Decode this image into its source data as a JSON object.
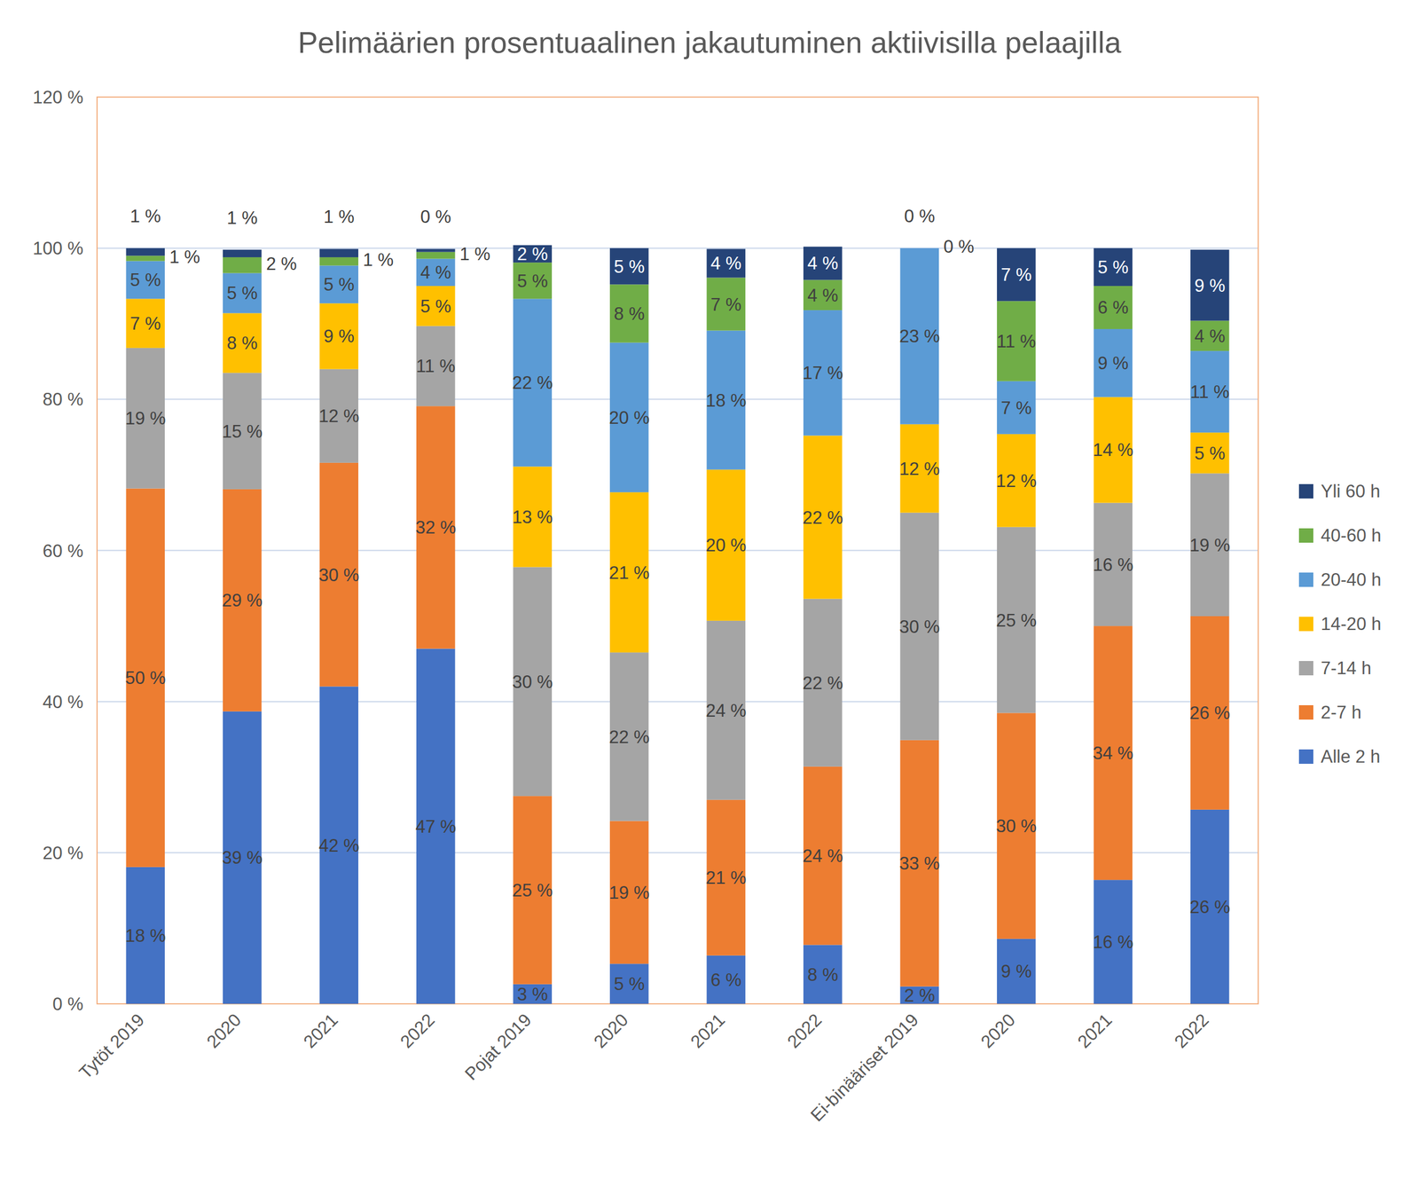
{
  "chart_data": {
    "type": "bar",
    "stacked": true,
    "data_labels": true,
    "grid": true,
    "legend": "right",
    "title": "Pelimäärien prosentuaalinen jakautuminen aktiivisilla pelaajilla",
    "categories": [
      "Tytöt 2019",
      "2020",
      "2021",
      "2022",
      "Pojat 2019",
      "2020",
      "2021",
      "2022",
      "Ei-binääriset 2019",
      "2020",
      "2021",
      "2022"
    ],
    "ylim": [
      0,
      120
    ],
    "yticks": [
      {
        "value": 0,
        "label": "0 %"
      },
      {
        "value": 20,
        "label": "20 %"
      },
      {
        "value": 40,
        "label": "40 %"
      },
      {
        "value": 60,
        "label": "60 %"
      },
      {
        "value": 80,
        "label": "80 %"
      },
      {
        "value": 100,
        "label": "100 %"
      },
      {
        "value": 120,
        "label": "120 %"
      }
    ],
    "series": [
      {
        "name": "Alle 2 h",
        "color": "#4472c4",
        "values": [
          18.1,
          38.7,
          42.0,
          47.0,
          2.6,
          5.3,
          6.4,
          7.8,
          2.3,
          8.6,
          16.4,
          25.7
        ],
        "value_labels": [
          "18 %",
          "39 %",
          "42 %",
          "47 %",
          "3 %",
          "5 %",
          "6 %",
          "8 %",
          "2 %",
          "9 %",
          "16 %",
          "26 %"
        ]
      },
      {
        "name": "2-7 h",
        "color": "#ed7d31",
        "values": [
          50.1,
          29.4,
          29.6,
          32.1,
          24.9,
          18.9,
          20.6,
          23.6,
          32.6,
          29.9,
          33.6,
          25.6
        ],
        "value_labels": [
          "50 %",
          "29 %",
          "30 %",
          "32 %",
          "25 %",
          "19 %",
          "21 %",
          "24 %",
          "33 %",
          "30 %",
          "34 %",
          "26 %"
        ]
      },
      {
        "name": "7-14 h",
        "color": "#a5a5a5",
        "values": [
          18.6,
          15.4,
          12.4,
          10.6,
          30.3,
          22.3,
          23.7,
          22.2,
          30.1,
          24.6,
          16.3,
          18.9
        ],
        "value_labels": [
          "19 %",
          "15 %",
          "12 %",
          "11 %",
          "30 %",
          "22 %",
          "24 %",
          "22 %",
          "30 %",
          "25 %",
          "16 %",
          "19 %"
        ]
      },
      {
        "name": "14-20 h",
        "color": "#ffc000",
        "values": [
          6.5,
          7.9,
          8.7,
          5.3,
          13.3,
          21.2,
          20.0,
          21.6,
          11.7,
          12.3,
          14.0,
          5.4
        ],
        "value_labels": [
          "7 %",
          "8 %",
          "9 %",
          "5 %",
          "13 %",
          "21 %",
          "20 %",
          "22 %",
          "12 %",
          "12 %",
          "14 %",
          "5 %"
        ]
      },
      {
        "name": "20-40 h",
        "color": "#5b9bd5",
        "values": [
          5.0,
          5.3,
          5.0,
          3.6,
          22.2,
          19.8,
          18.4,
          16.6,
          23.3,
          7.0,
          9.0,
          10.8
        ],
        "value_labels": [
          "5 %",
          "5 %",
          "5 %",
          "4 %",
          "22 %",
          "20 %",
          "18 %",
          "17 %",
          "23 %",
          "7 %",
          "9 %",
          "11 %"
        ]
      },
      {
        "name": "40-60 h",
        "color": "#70ad47",
        "values": [
          0.7,
          2.1,
          1.1,
          0.9,
          4.8,
          7.7,
          7.0,
          4.0,
          0,
          10.6,
          5.7,
          4.0
        ],
        "value_labels": [
          "1 %",
          "2 %",
          "1 %",
          "1 %",
          "5 %",
          "8 %",
          "7 %",
          "4 %",
          "0 %",
          "11 %",
          "6 %",
          "4 %"
        ]
      },
      {
        "name": "Yli 60 h",
        "color": "#264478",
        "values": [
          1.0,
          1.0,
          1.1,
          0.4,
          2.3,
          4.8,
          3.8,
          4.4,
          0,
          7.0,
          5.0,
          9.4
        ],
        "value_labels": [
          "1 %",
          "1 %",
          "1 %",
          "0 %",
          "2 %",
          "5 %",
          "4 %",
          "4 %",
          "0 %",
          "7 %",
          "5 %",
          "9 %"
        ]
      }
    ]
  }
}
